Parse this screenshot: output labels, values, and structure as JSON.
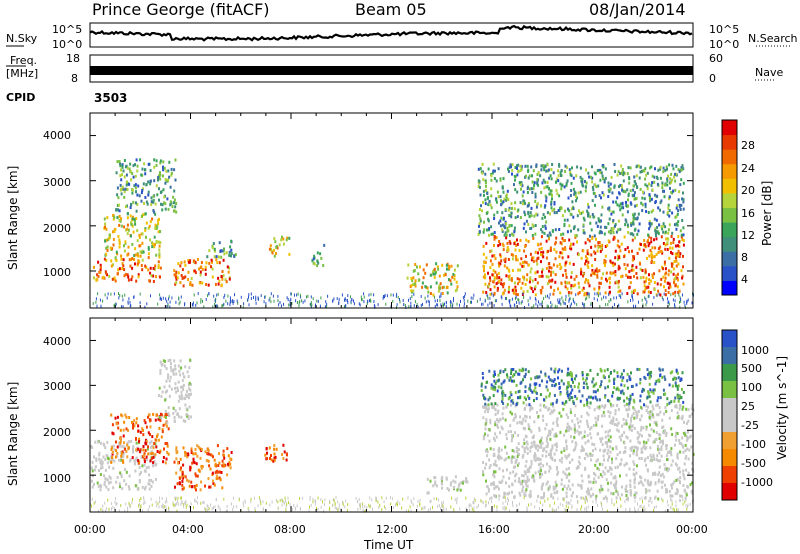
{
  "header": {
    "station": "Prince George (fitACF)",
    "beam": "Beam 05",
    "date": "08/Jan/2014"
  },
  "strips": {
    "nsky_label": "N.Sky",
    "nsearch_label": "N.Search",
    "freq_label": "Freq.",
    "freq_unit": "[MHz]",
    "nave_label": "Nave",
    "cpid_label": "CPID",
    "cpid_value": "3503",
    "noise_left_ticks": [
      "10^5",
      "10^0"
    ],
    "noise_right_ticks": [
      "10^5",
      "10^0"
    ],
    "freq_left_ticks": [
      "18",
      "8"
    ],
    "freq_right_ticks": [
      "60",
      "0"
    ]
  },
  "colors": {
    "axis": "#000000",
    "power_scale": [
      "#0000ff",
      "#2a52c8",
      "#3a6ea5",
      "#3f8f7a",
      "#3aa55a",
      "#7ac143",
      "#b5d33a",
      "#f0c000",
      "#f59a00",
      "#f06a00",
      "#e83a00",
      "#e00000"
    ],
    "velocity_scale": [
      "#e00000",
      "#f04000",
      "#f58a00",
      "#f0a030",
      "#c8c8c8",
      "#c8c8c8",
      "#7ac143",
      "#3a9a4a",
      "#3a6ea5",
      "#2a52c8"
    ]
  },
  "chart_data": [
    {
      "type": "heatmap",
      "title": "Power",
      "xlabel": "Time UT",
      "ylabel": "Slant Range [km]",
      "x_ticks": [
        "00:00",
        "04:00",
        "08:00",
        "12:00",
        "16:00",
        "20:00",
        "00:00"
      ],
      "y_ticks": [
        "1000",
        "2000",
        "3000",
        "4000"
      ],
      "ylim": [
        180,
        4500
      ],
      "colorbar": {
        "label": "Power [dB]",
        "ticks": [
          "4",
          "8",
          "12",
          "16",
          "20",
          "24",
          "28"
        ],
        "range": [
          0,
          30
        ]
      },
      "regions": [
        {
          "t0": 0.1,
          "t1": 2.8,
          "r0": 800,
          "r1": 1300,
          "level": "high"
        },
        {
          "t0": 0.5,
          "t1": 2.8,
          "r0": 1300,
          "r1": 2300,
          "level": "mid"
        },
        {
          "t0": 1.0,
          "t1": 3.4,
          "r0": 2300,
          "r1": 3500,
          "level": "low"
        },
        {
          "t0": 3.3,
          "t1": 5.6,
          "r0": 700,
          "r1": 1300,
          "level": "high"
        },
        {
          "t0": 4.6,
          "t1": 5.8,
          "r0": 1300,
          "r1": 1700,
          "level": "low"
        },
        {
          "t0": 7.1,
          "t1": 7.9,
          "r0": 1350,
          "r1": 1800,
          "level": "mid"
        },
        {
          "t0": 8.8,
          "t1": 9.3,
          "r0": 1100,
          "r1": 1600,
          "level": "low"
        },
        {
          "t0": 12.6,
          "t1": 14.6,
          "r0": 500,
          "r1": 1200,
          "level": "mid"
        },
        {
          "t0": 15.6,
          "t1": 23.6,
          "r0": 500,
          "r1": 1800,
          "level": "high"
        },
        {
          "t0": 15.4,
          "t1": 23.6,
          "r0": 1800,
          "r1": 3400,
          "level": "low"
        }
      ]
    },
    {
      "type": "heatmap",
      "title": "Velocity",
      "xlabel": "Time UT",
      "ylabel": "Slant Range [km]",
      "x_ticks": [
        "00:00",
        "04:00",
        "08:00",
        "12:00",
        "16:00",
        "20:00",
        "00:00"
      ],
      "y_ticks": [
        "1000",
        "2000",
        "3000",
        "4000"
      ],
      "ylim": [
        180,
        4500
      ],
      "colorbar": {
        "label": "Velocity [m s^-1]",
        "ticks": [
          "1000",
          "500",
          "100",
          "25",
          "-25",
          "-100",
          "-500",
          "-1000"
        ]
      },
      "regions": [
        {
          "t0": 0.0,
          "t1": 2.6,
          "r0": 700,
          "r1": 1800,
          "level": "ground"
        },
        {
          "t0": 0.8,
          "t1": 3.1,
          "r0": 1300,
          "r1": 2400,
          "level": "neg"
        },
        {
          "t0": 2.7,
          "t1": 4.0,
          "r0": 2200,
          "r1": 3600,
          "level": "ground"
        },
        {
          "t0": 3.3,
          "t1": 5.6,
          "r0": 700,
          "r1": 1700,
          "level": "neg"
        },
        {
          "t0": 6.9,
          "t1": 7.9,
          "r0": 1300,
          "r1": 1700,
          "level": "neg"
        },
        {
          "t0": 13.3,
          "t1": 15.0,
          "r0": 600,
          "r1": 1000,
          "level": "ground"
        },
        {
          "t0": 15.6,
          "t1": 24.0,
          "r0": 500,
          "r1": 2600,
          "level": "ground"
        },
        {
          "t0": 15.4,
          "t1": 23.6,
          "r0": 2600,
          "r1": 3400,
          "level": "pos"
        }
      ]
    }
  ]
}
